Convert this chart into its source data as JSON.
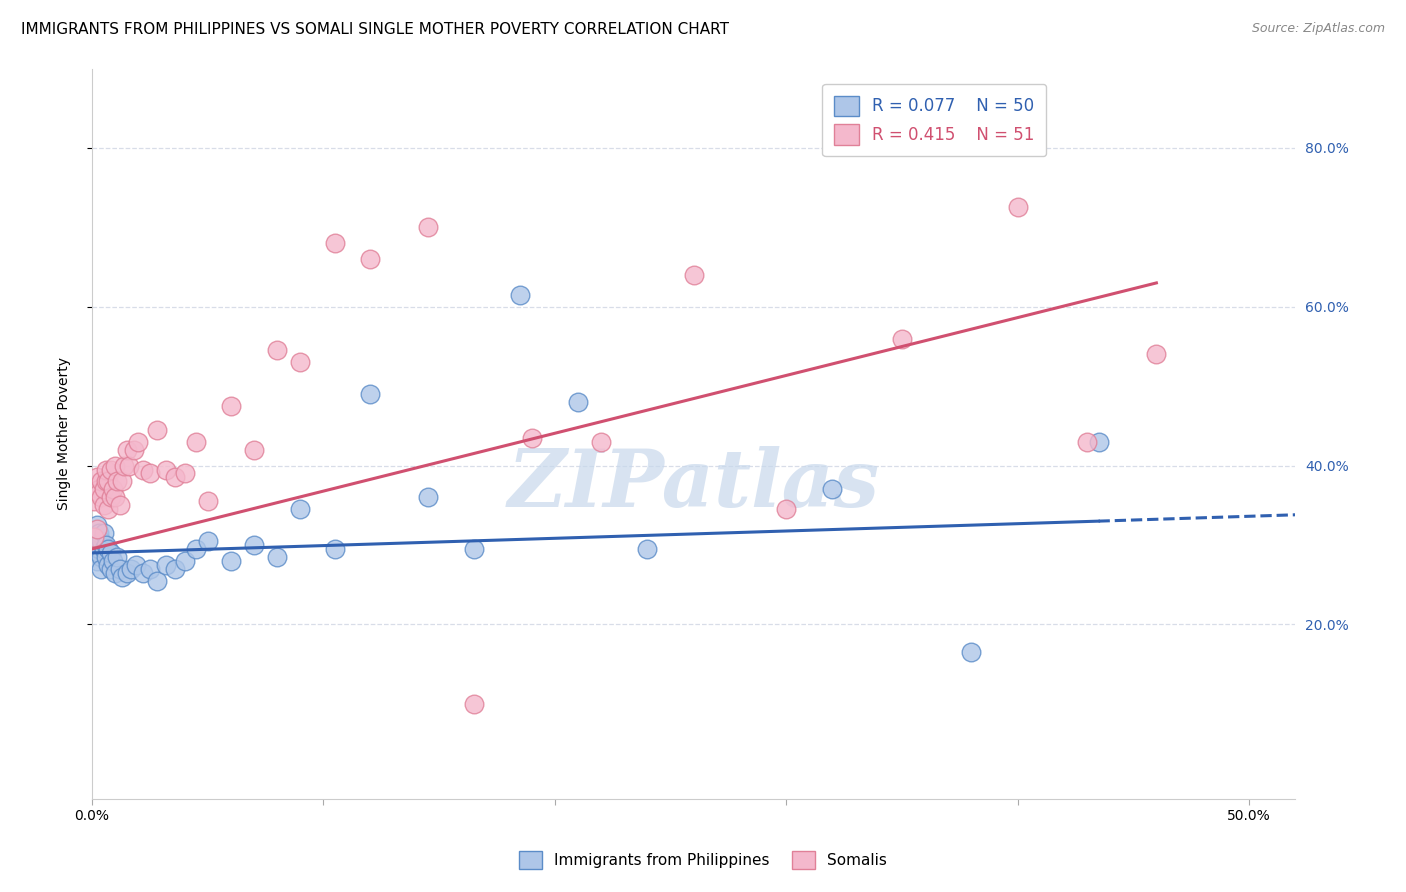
{
  "title": "IMMIGRANTS FROM PHILIPPINES VS SOMALI SINGLE MOTHER POVERTY CORRELATION CHART",
  "source": "Source: ZipAtlas.com",
  "ylabel": "Single Mother Poverty",
  "ytick_labels": [
    "20.0%",
    "40.0%",
    "60.0%",
    "80.0%"
  ],
  "ytick_values": [
    0.2,
    0.4,
    0.6,
    0.8
  ],
  "xlim": [
    0.0,
    0.52
  ],
  "ylim": [
    -0.02,
    0.9
  ],
  "legend_blue_label": "Immigrants from Philippines",
  "legend_pink_label": "Somalis",
  "R_blue": "0.077",
  "N_blue": "50",
  "R_pink": "0.415",
  "N_pink": "51",
  "blue_fill": "#aec6e8",
  "pink_fill": "#f4b8cc",
  "blue_edge": "#5b8cc8",
  "pink_edge": "#e08098",
  "blue_line_color": "#3060b0",
  "pink_line_color": "#d05070",
  "grid_color": "#d8dde8",
  "background_color": "#ffffff",
  "watermark": "ZIPatlas",
  "blue_scatter_x": [
    0.001,
    0.001,
    0.002,
    0.002,
    0.002,
    0.003,
    0.003,
    0.003,
    0.003,
    0.004,
    0.004,
    0.004,
    0.005,
    0.005,
    0.006,
    0.006,
    0.007,
    0.007,
    0.008,
    0.008,
    0.009,
    0.01,
    0.011,
    0.012,
    0.013,
    0.015,
    0.017,
    0.019,
    0.022,
    0.025,
    0.028,
    0.032,
    0.036,
    0.04,
    0.045,
    0.05,
    0.06,
    0.07,
    0.08,
    0.09,
    0.105,
    0.12,
    0.145,
    0.165,
    0.185,
    0.21,
    0.24,
    0.32,
    0.38,
    0.435
  ],
  "blue_scatter_y": [
    0.295,
    0.31,
    0.3,
    0.28,
    0.325,
    0.29,
    0.31,
    0.295,
    0.315,
    0.285,
    0.305,
    0.27,
    0.295,
    0.315,
    0.3,
    0.285,
    0.275,
    0.295,
    0.27,
    0.29,
    0.28,
    0.265,
    0.285,
    0.27,
    0.26,
    0.265,
    0.27,
    0.275,
    0.265,
    0.27,
    0.255,
    0.275,
    0.27,
    0.28,
    0.295,
    0.305,
    0.28,
    0.3,
    0.285,
    0.345,
    0.295,
    0.49,
    0.36,
    0.295,
    0.615,
    0.48,
    0.295,
    0.37,
    0.165,
    0.43
  ],
  "pink_scatter_x": [
    0.001,
    0.001,
    0.002,
    0.002,
    0.003,
    0.003,
    0.004,
    0.004,
    0.005,
    0.005,
    0.006,
    0.006,
    0.007,
    0.007,
    0.008,
    0.008,
    0.009,
    0.01,
    0.01,
    0.011,
    0.012,
    0.013,
    0.014,
    0.015,
    0.016,
    0.018,
    0.02,
    0.022,
    0.025,
    0.028,
    0.032,
    0.036,
    0.04,
    0.045,
    0.05,
    0.06,
    0.07,
    0.08,
    0.09,
    0.105,
    0.12,
    0.145,
    0.165,
    0.19,
    0.22,
    0.26,
    0.3,
    0.35,
    0.4,
    0.43,
    0.46
  ],
  "pink_scatter_y": [
    0.31,
    0.355,
    0.32,
    0.385,
    0.37,
    0.365,
    0.36,
    0.38,
    0.35,
    0.37,
    0.38,
    0.395,
    0.345,
    0.38,
    0.36,
    0.395,
    0.37,
    0.36,
    0.4,
    0.38,
    0.35,
    0.38,
    0.4,
    0.42,
    0.4,
    0.42,
    0.43,
    0.395,
    0.39,
    0.445,
    0.395,
    0.385,
    0.39,
    0.43,
    0.355,
    0.475,
    0.42,
    0.545,
    0.53,
    0.68,
    0.66,
    0.7,
    0.1,
    0.435,
    0.43,
    0.64,
    0.345,
    0.56,
    0.725,
    0.43,
    0.54
  ],
  "blue_trendline_x0": 0.0,
  "blue_trendline_y0": 0.29,
  "blue_trendline_x1": 0.435,
  "blue_trendline_y1": 0.33,
  "blue_trendline_x1_dashed": 0.52,
  "blue_trendline_y1_dashed": 0.338,
  "pink_trendline_x0": 0.0,
  "pink_trendline_y0": 0.295,
  "pink_trendline_x1": 0.46,
  "pink_trendline_y1": 0.63,
  "title_fontsize": 11,
  "axis_label_fontsize": 10,
  "tick_fontsize": 10,
  "legend_fontsize": 12
}
